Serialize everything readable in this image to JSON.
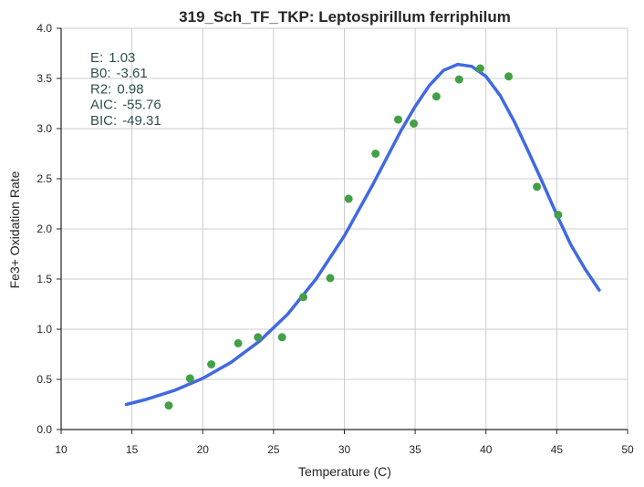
{
  "chart_data": {
    "type": "scatter",
    "title": "319_Sch_TF_TKP: Leptospirillum ferriphilum",
    "xlabel": "Temperature (C)",
    "ylabel": "Fe3+ Oxidation Rate",
    "xlim": [
      10,
      50
    ],
    "ylim": [
      0,
      4.0
    ],
    "x_ticks": [
      "10",
      "15",
      "20",
      "25",
      "30",
      "35",
      "40",
      "45",
      "50"
    ],
    "y_ticks": [
      "0.0",
      "0.5",
      "1.0",
      "1.5",
      "2.0",
      "2.5",
      "3.0",
      "3.5",
      "4.0"
    ],
    "grid": true,
    "colors": {
      "points": "#43a047",
      "curve": "#4169e1",
      "stats": "#2f4f4f"
    },
    "stats": [
      {
        "label": "E:",
        "value": "1.03"
      },
      {
        "label": "B0:",
        "value": "-3.61"
      },
      {
        "label": "R2:",
        "value": "0.98"
      },
      {
        "label": "AIC:",
        "value": "-55.76"
      },
      {
        "label": "BIC:",
        "value": "-49.31"
      }
    ],
    "points": [
      {
        "x": 17.6,
        "y": 0.24
      },
      {
        "x": 19.1,
        "y": 0.51
      },
      {
        "x": 20.6,
        "y": 0.65
      },
      {
        "x": 22.5,
        "y": 0.86
      },
      {
        "x": 23.9,
        "y": 0.92
      },
      {
        "x": 25.6,
        "y": 0.92
      },
      {
        "x": 27.1,
        "y": 1.32
      },
      {
        "x": 29.0,
        "y": 1.51
      },
      {
        "x": 30.3,
        "y": 2.3
      },
      {
        "x": 32.2,
        "y": 2.75
      },
      {
        "x": 33.8,
        "y": 3.09
      },
      {
        "x": 34.9,
        "y": 3.05
      },
      {
        "x": 36.5,
        "y": 3.32
      },
      {
        "x": 38.1,
        "y": 3.49
      },
      {
        "x": 39.6,
        "y": 3.6
      },
      {
        "x": 41.6,
        "y": 3.52
      },
      {
        "x": 43.6,
        "y": 2.42
      },
      {
        "x": 45.1,
        "y": 2.14
      }
    ],
    "fit_curve": {
      "x": [
        14.6,
        16,
        18,
        20,
        22,
        24,
        26,
        28,
        30,
        32,
        34,
        35,
        36,
        37,
        38,
        39,
        40,
        41,
        42,
        43,
        44,
        45,
        46,
        47,
        48
      ],
      "y": [
        0.25,
        0.3,
        0.39,
        0.51,
        0.67,
        0.88,
        1.15,
        1.5,
        1.93,
        2.44,
        2.98,
        3.22,
        3.43,
        3.58,
        3.64,
        3.62,
        3.52,
        3.33,
        3.07,
        2.77,
        2.46,
        2.14,
        1.84,
        1.6,
        1.39
      ]
    }
  }
}
